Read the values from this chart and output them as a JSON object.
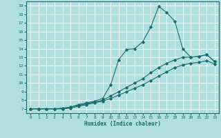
{
  "xlabel": "Humidex (Indice chaleur)",
  "xlim": [
    -0.5,
    23.5
  ],
  "ylim": [
    6.5,
    19.5
  ],
  "xticks": [
    0,
    1,
    2,
    3,
    4,
    5,
    6,
    7,
    8,
    9,
    10,
    11,
    12,
    13,
    14,
    15,
    16,
    17,
    18,
    19,
    20,
    21,
    22,
    23
  ],
  "yticks": [
    7,
    8,
    9,
    10,
    11,
    12,
    13,
    14,
    15,
    16,
    17,
    18,
    19
  ],
  "bg_color": "#b0dfdf",
  "grid_color": "#ffffff",
  "line_color": "#1a6b6b",
  "line1_x": [
    0,
    1,
    2,
    3,
    4,
    5,
    6,
    7,
    8,
    9,
    10,
    11,
    12,
    13,
    14,
    15,
    16,
    17,
    18,
    19,
    20,
    21,
    22,
    23
  ],
  "line1_y": [
    7,
    7,
    7,
    7,
    7,
    7.2,
    7.5,
    7.7,
    7.9,
    8.2,
    9.8,
    12.7,
    13.9,
    14.0,
    14.8,
    16.5,
    18.9,
    18.2,
    17.2,
    14.0,
    13.0,
    13.1,
    13.3,
    12.5
  ],
  "line2_x": [
    0,
    1,
    2,
    3,
    4,
    5,
    6,
    7,
    8,
    9,
    10,
    11,
    12,
    13,
    14,
    15,
    16,
    17,
    18,
    19,
    20,
    21,
    22,
    23
  ],
  "line2_y": [
    7,
    7,
    7,
    7,
    7.1,
    7.2,
    7.4,
    7.6,
    7.8,
    8.0,
    8.5,
    9.0,
    9.5,
    10.0,
    10.5,
    11.2,
    11.8,
    12.3,
    12.7,
    13.0,
    13.0,
    13.1,
    13.3,
    12.5
  ],
  "line3_x": [
    0,
    1,
    2,
    3,
    4,
    5,
    6,
    7,
    8,
    9,
    10,
    11,
    12,
    13,
    14,
    15,
    16,
    17,
    18,
    19,
    20,
    21,
    22,
    23
  ],
  "line3_y": [
    7,
    7,
    7,
    7,
    7.0,
    7.1,
    7.3,
    7.5,
    7.7,
    7.9,
    8.2,
    8.6,
    9.0,
    9.4,
    9.8,
    10.3,
    10.8,
    11.3,
    11.8,
    12.1,
    12.3,
    12.4,
    12.6,
    12.2
  ]
}
